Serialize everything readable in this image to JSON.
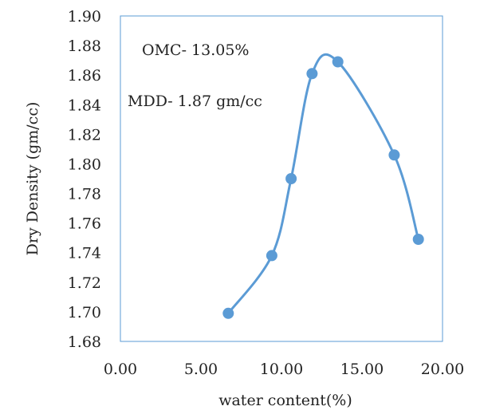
{
  "chart_data": {
    "type": "scatter",
    "title": "",
    "xlabel": "water content(%)",
    "ylabel": "Dry Density (gm/cc)",
    "xlim": [
      0,
      20
    ],
    "ylim": [
      1.68,
      1.9
    ],
    "x_ticks": [
      "0.00",
      "5.00",
      "10.00",
      "15.00",
      "20.00"
    ],
    "y_ticks": [
      "1.68",
      "1.70",
      "1.72",
      "1.74",
      "1.76",
      "1.78",
      "1.80",
      "1.82",
      "1.84",
      "1.86",
      "1.88",
      "1.90"
    ],
    "grid": false,
    "smoothed_line": true,
    "colors": {
      "series": "#5b9bd5",
      "frame": "#5b9bd5"
    },
    "series": [
      {
        "x": [
          6.7,
          9.4,
          10.6,
          11.9,
          13.5,
          17.0,
          18.5
        ],
        "y": [
          1.699,
          1.738,
          1.79,
          1.861,
          1.869,
          1.806,
          1.749
        ]
      }
    ],
    "annotations": [
      "OMC- 13.05%",
      "MDD- 1.87 gm/cc"
    ]
  }
}
